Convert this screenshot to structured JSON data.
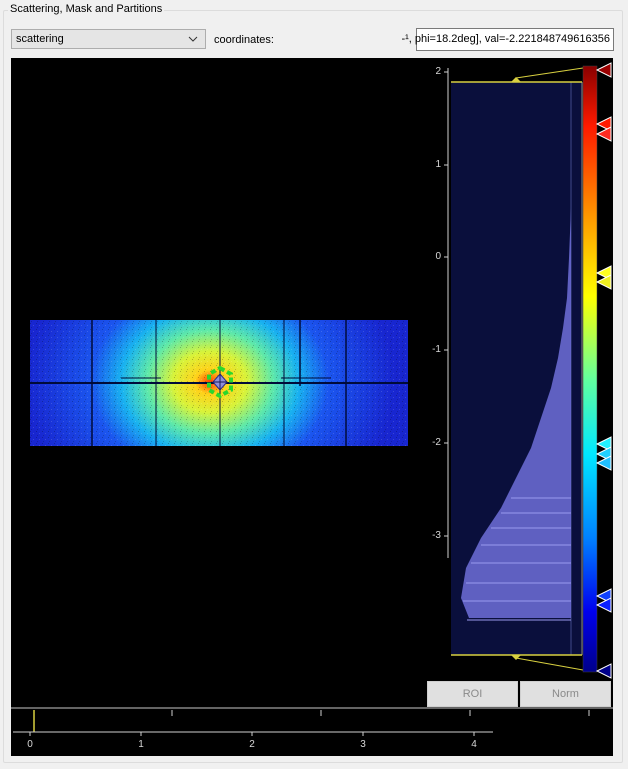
{
  "group_title": "Scattering, Mask and Partitions",
  "mode_select": {
    "value": "scattering"
  },
  "coordinates": {
    "label": "coordinates:",
    "value": "-¹, phi=18.2deg], val=-2.221848749616356"
  },
  "histogram": {
    "y_ticks": [
      "2",
      "1",
      "0",
      "-1",
      "-2",
      "-3"
    ]
  },
  "buttons": {
    "roi": "ROI",
    "norm": "Norm"
  },
  "bottom_axis": {
    "ticks": [
      "0",
      "1",
      "2",
      "3",
      "4"
    ]
  },
  "colors": {
    "accent_line": "#d8d040",
    "histogram_bg": "#0a0f3c",
    "histogram_fill": "#6f6fd8"
  },
  "icons": {
    "select_arrow": "chevron-down-icon",
    "colormap_handle": "triangle-handle-icon"
  }
}
